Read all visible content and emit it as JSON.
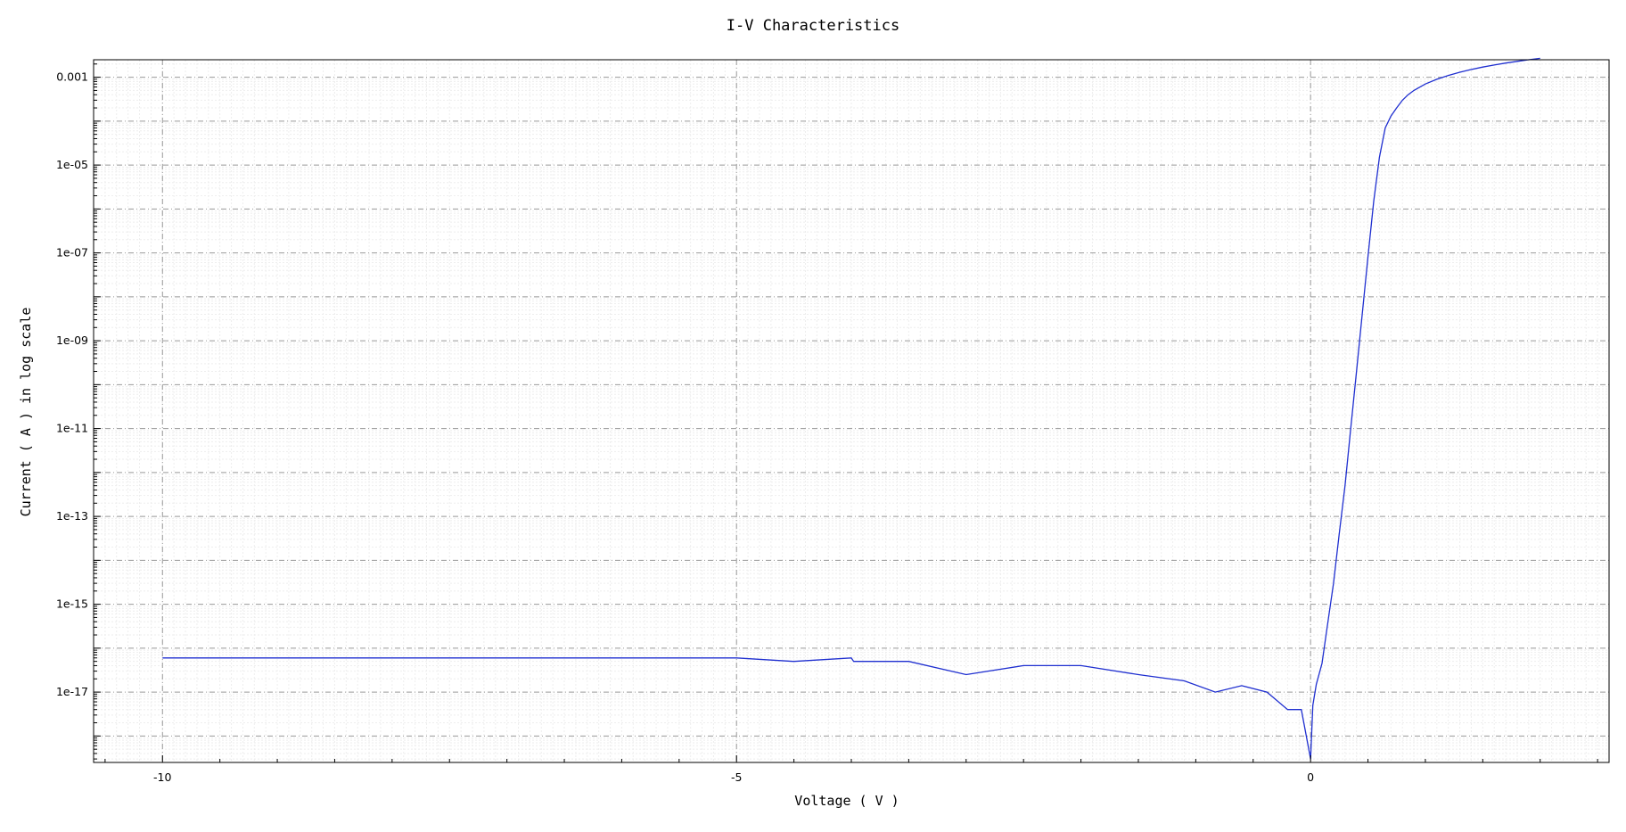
{
  "chart_data": {
    "type": "line",
    "title": "I-V Characteristics",
    "xlabel": "Voltage ( V )",
    "ylabel": "Current ( A ) in log scale",
    "yscale": "log",
    "xlim": [
      -10.6,
      2.6
    ],
    "ylim": [
      2.5e-19,
      0.0025
    ],
    "x_ticks": [
      -10,
      -5,
      0
    ],
    "x_tick_labels": [
      "-10",
      "-5",
      "0"
    ],
    "y_ticks": [
      0.001,
      1e-05,
      1e-07,
      1e-09,
      1e-11,
      1e-13,
      1e-15,
      1e-17
    ],
    "y_tick_labels": [
      "0.001",
      "1e-05",
      "1e-07",
      "1e-09",
      "1e-11",
      "1e-13",
      "1e-15",
      "1e-17"
    ],
    "grid": true,
    "line_color": "#1f2fd0",
    "series": [
      {
        "x": [
          -10,
          -9,
          -8,
          -7,
          -6,
          -5,
          -4.5,
          -4.0,
          -3.98,
          -3.5,
          -3.0,
          -2.5,
          -2.0,
          -1.5,
          -1.1,
          -0.83,
          -0.6,
          -0.38,
          -0.2,
          -0.08,
          0.0,
          0.02,
          0.05,
          0.1,
          0.14,
          0.2,
          0.25,
          0.3,
          0.35,
          0.4,
          0.45,
          0.5,
          0.55,
          0.6,
          0.65,
          0.7,
          0.75,
          0.8,
          0.85,
          0.9,
          1.0,
          1.1,
          1.2,
          1.3,
          1.4,
          1.5,
          1.6,
          1.7,
          1.8,
          1.9,
          2.0
        ],
        "y": [
          6e-17,
          6e-17,
          6e-17,
          6e-17,
          6e-17,
          6e-17,
          5e-17,
          6e-17,
          5e-17,
          5e-17,
          2.5e-17,
          4e-17,
          4e-17,
          2.5e-17,
          1.8e-17,
          1e-17,
          1.4e-17,
          1e-17,
          4e-18,
          4e-18,
          3e-19,
          5e-18,
          1.5e-17,
          4.5e-17,
          2.5e-16,
          3e-15,
          4e-14,
          5e-13,
          1e-11,
          2e-10,
          4e-09,
          8e-08,
          1.5e-06,
          1.5e-05,
          7e-05,
          0.00013,
          0.0002,
          0.0003,
          0.0004,
          0.0005,
          0.0007,
          0.0009,
          0.0011,
          0.0013,
          0.0015,
          0.0017,
          0.0019,
          0.0021,
          0.0023,
          0.0025,
          0.0027
        ]
      }
    ]
  }
}
